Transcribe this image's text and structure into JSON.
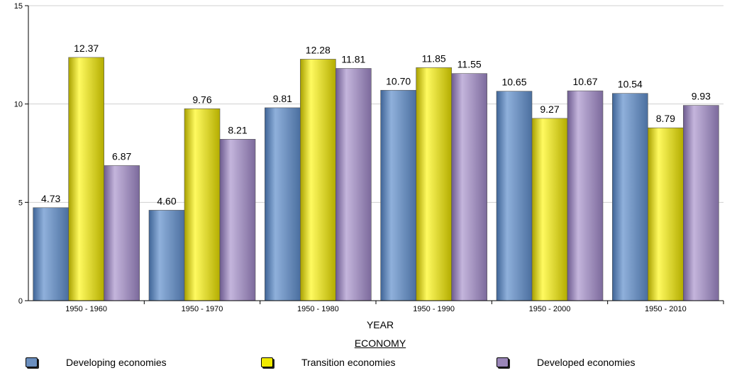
{
  "chart_data": {
    "type": "bar",
    "categories": [
      "1950 - 1960",
      "1950 - 1970",
      "1950 - 1980",
      "1950 - 1990",
      "1950 - 2000",
      "1950 - 2010"
    ],
    "series": [
      {
        "name": "Developing economies",
        "values": [
          4.73,
          4.6,
          9.81,
          10.7,
          10.65,
          10.54
        ],
        "labels": [
          "4.73",
          "4.60",
          "9.81",
          "10.70",
          "10.65",
          "10.54"
        ],
        "color": "#6b8fbf"
      },
      {
        "name": "Transition economies",
        "values": [
          12.37,
          9.76,
          12.28,
          11.85,
          9.27,
          8.79
        ],
        "labels": [
          "12.37",
          "9.76",
          "12.28",
          "11.85",
          "9.27",
          "8.79"
        ],
        "color": "#e8e000"
      },
      {
        "name": "Developed economies",
        "values": [
          6.87,
          8.21,
          11.81,
          11.55,
          10.67,
          9.93
        ],
        "labels": [
          "6.87",
          "8.21",
          "11.81",
          "11.55",
          "10.67",
          "9.93"
        ],
        "color": "#9a86b8"
      }
    ],
    "xlabel": "YEAR",
    "legend_title": "ECONOMY",
    "ylim": [
      0,
      15
    ],
    "yticks": [
      0,
      5,
      10,
      15
    ],
    "grid": true,
    "legend_position": "bottom"
  }
}
